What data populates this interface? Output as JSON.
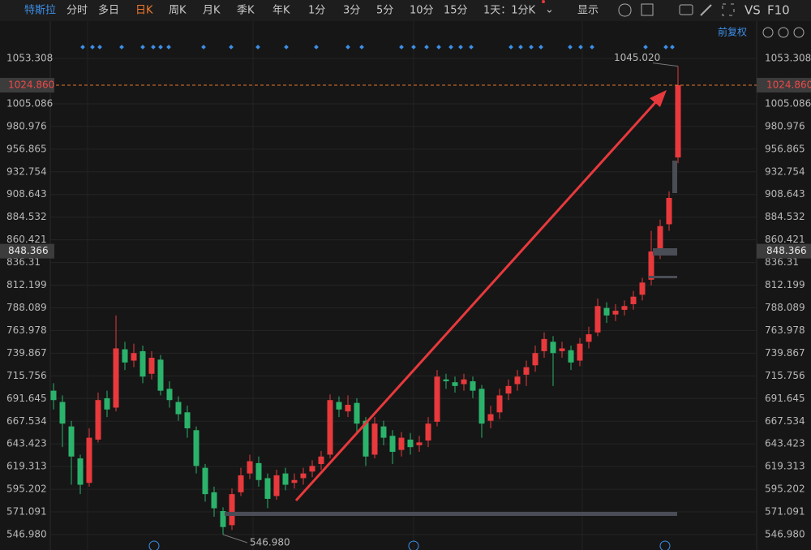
{
  "toolbar": {
    "stock": "特斯拉",
    "periods": [
      "分时",
      "多日",
      "日K",
      "周K",
      "月K",
      "季K",
      "年K",
      "1分",
      "3分",
      "5分",
      "10分",
      "15分"
    ],
    "range": "1天：1分K",
    "display": "显示",
    "vs": "VS",
    "f10": "F10",
    "adjust": "前复权"
  },
  "chart_data": {
    "type": "candlestick",
    "up_color": "#e8393c",
    "down_color": "#2bb36b",
    "ylim": [
      530.6,
      1091.3
    ],
    "yticks": [
      1053.308,
      1005.086,
      980.976,
      956.865,
      932.754,
      908.643,
      884.532,
      860.421,
      836.31,
      812.199,
      788.089,
      763.978,
      739.867,
      715.756,
      691.645,
      667.534,
      643.423,
      619.313,
      595.202,
      571.091,
      {
        "value": 546.98,
        "label": "546.980"
      }
    ],
    "current_price": {
      "value": 1024.86,
      "label": "1024.860"
    },
    "marker_price": {
      "value": 848.366,
      "label": "848.366"
    },
    "high_label": {
      "value": 1045.02,
      "label": "1045.020"
    },
    "low_label": {
      "value": 546.98,
      "label": "546.980"
    },
    "open": [
      700,
      688,
      662,
      628,
      602,
      648,
      692,
      682,
      744,
      732,
      742,
      718,
      733,
      702,
      688,
      677,
      658,
      618,
      592,
      572,
      557,
      592,
      612,
      623,
      607,
      588,
      612,
      602,
      607,
      614,
      622,
      632,
      688,
      678,
      687,
      668,
      632,
      662,
      652,
      637,
      648,
      642,
      647,
      667,
      712,
      709,
      707,
      710,
      702,
      668,
      677,
      697,
      707,
      717,
      727,
      742,
      752,
      742,
      743,
      732,
      752,
      762,
      788,
      781,
      786,
      792,
      802,
      818,
      850,
      877,
      948
    ],
    "high": [
      708,
      695,
      668,
      632,
      660,
      698,
      700,
      780,
      752,
      750,
      748,
      742,
      738,
      710,
      694,
      684,
      662,
      622,
      598,
      576,
      596,
      618,
      632,
      630,
      612,
      616,
      618,
      612,
      618,
      626,
      636,
      696,
      694,
      695,
      692,
      672,
      672,
      668,
      658,
      656,
      655,
      652,
      672,
      722,
      718,
      715,
      718,
      715,
      706,
      684,
      702,
      712,
      722,
      732,
      748,
      762,
      758,
      752,
      748,
      756,
      768,
      798,
      794,
      792,
      796,
      806,
      820,
      870,
      882,
      912,
      1045.02
    ],
    "low": [
      680,
      640,
      600,
      590,
      598,
      645,
      672,
      678,
      722,
      725,
      708,
      712,
      695,
      682,
      668,
      650,
      612,
      582,
      566,
      546.98,
      552,
      588,
      606,
      598,
      575,
      584,
      594,
      596,
      600,
      608,
      616,
      628,
      672,
      672,
      655,
      620,
      628,
      642,
      622,
      630,
      632,
      635,
      640,
      662,
      702,
      698,
      700,
      692,
      650,
      660,
      670,
      690,
      700,
      705,
      720,
      735,
      705,
      735,
      722,
      726,
      745,
      758,
      772,
      774,
      780,
      786,
      796,
      812,
      840,
      870,
      942
    ],
    "close": [
      690,
      665,
      630,
      600,
      650,
      690,
      680,
      745,
      730,
      740,
      715,
      735,
      700,
      690,
      675,
      660,
      620,
      590,
      575,
      555,
      590,
      610,
      625,
      605,
      585,
      610,
      600,
      605,
      612,
      620,
      630,
      690,
      680,
      685,
      665,
      630,
      665,
      650,
      635,
      650,
      640,
      645,
      665,
      715,
      710,
      705,
      712,
      700,
      665,
      675,
      695,
      705,
      715,
      725,
      740,
      755,
      740,
      745,
      730,
      750,
      760,
      790,
      780,
      785,
      790,
      800,
      815,
      848,
      875,
      905,
      1024.86
    ]
  }
}
